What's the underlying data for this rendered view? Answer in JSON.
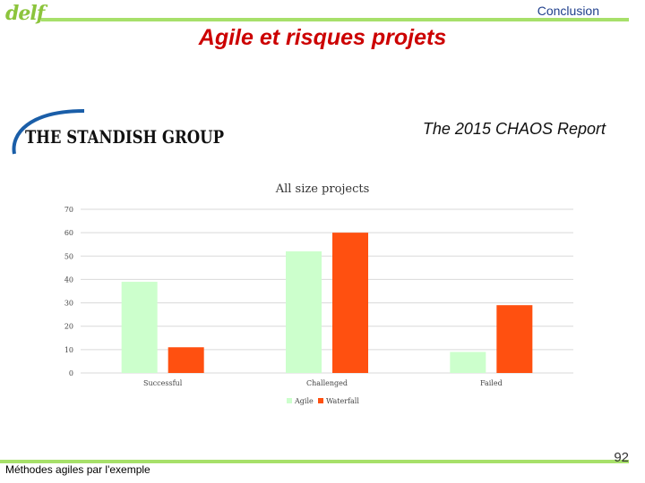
{
  "header": {
    "logo_text": "delf",
    "section": "Conclusion",
    "title": "Agile et risques projets",
    "brand": "THE STANDISH GROUP",
    "report": "The 2015 CHAOS Report"
  },
  "footer": {
    "text": "Méthodes agiles par l'exemple",
    "page": "92"
  },
  "colors": {
    "agile": "#ccffcc",
    "waterfall": "#ff5010",
    "accent_bar": "#a7e06a",
    "title": "#cc0000"
  },
  "chart_data": {
    "type": "bar",
    "title": "All size projects",
    "categories": [
      "Successful",
      "Challenged",
      "Failed"
    ],
    "series": [
      {
        "name": "Agile",
        "values": [
          39,
          52,
          9
        ]
      },
      {
        "name": "Waterfall",
        "values": [
          11,
          60,
          29
        ]
      }
    ],
    "ylim": [
      0,
      70
    ],
    "yticks": [
      0,
      10,
      20,
      30,
      40,
      50,
      60,
      70
    ],
    "grid": true,
    "legend": "bottom"
  }
}
